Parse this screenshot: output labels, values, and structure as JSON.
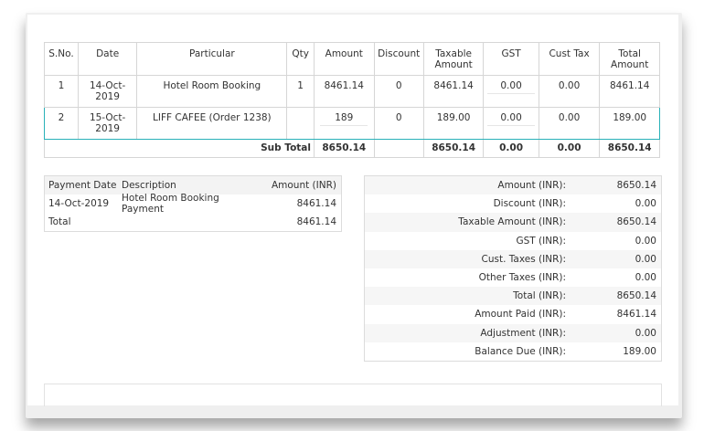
{
  "items_table": {
    "headers": [
      "S.No.",
      "Date",
      "Particular",
      "Qty",
      "Amount",
      "Discount",
      "Taxable Amount",
      "GST",
      "Cust Tax",
      "Total Amount"
    ],
    "rows": [
      [
        "1",
        "14-Oct-2019",
        "Hotel Room Booking",
        "1",
        "8461.14",
        "0",
        "8461.14",
        "0.00",
        "0.00",
        "8461.14"
      ],
      [
        "2",
        "15-Oct-2019",
        "LIFF CAFEE (Order 1238)",
        "",
        "189",
        "0",
        "189.00",
        "0.00",
        "0.00",
        "189.00"
      ]
    ],
    "subtotal": {
      "label": "Sub Total",
      "amount": "8650.14",
      "discount": "",
      "taxable": "8650.14",
      "gst": "0.00",
      "cust_tax": "0.00",
      "total": "8650.14"
    }
  },
  "payments": {
    "headers": [
      "Payment Date",
      "Description",
      "Amount (INR)"
    ],
    "rows": [
      [
        "14-Oct-2019",
        "Hotel Room Booking Payment",
        "8461.14"
      ]
    ],
    "total_label": "Total",
    "total_value": "8461.14"
  },
  "summary": [
    {
      "label": "Amount (INR):",
      "value": "8650.14"
    },
    {
      "label": "Discount (INR):",
      "value": "0.00"
    },
    {
      "label": "Taxable Amount (INR):",
      "value": "8650.14"
    },
    {
      "label": "GST (INR):",
      "value": "0.00"
    },
    {
      "label": "Cust. Taxes (INR):",
      "value": "0.00"
    },
    {
      "label": "Other Taxes (INR):",
      "value": "0.00"
    },
    {
      "label": "Total (INR):",
      "value": "8650.14"
    },
    {
      "label": "Amount Paid (INR):",
      "value": "8461.14"
    },
    {
      "label": "Adjustment (INR):",
      "value": "0.00"
    },
    {
      "label": "Balance Due (INR):",
      "value": "189.00"
    }
  ],
  "colors": {
    "accent": "#29b1b8",
    "border": "#d6d6d6"
  }
}
